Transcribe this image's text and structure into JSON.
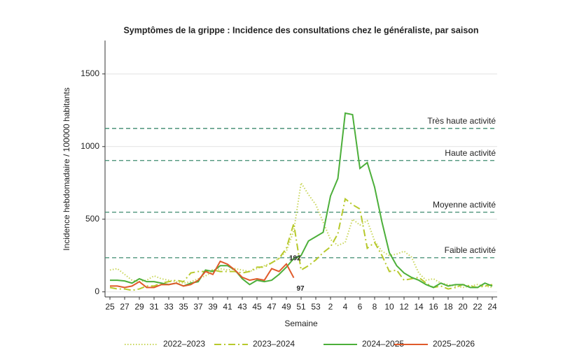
{
  "chart_data": {
    "type": "line",
    "title": "Symptômes de la grippe : Incidence des consultations chez le généraliste, par saison",
    "x_label": "Semaine",
    "y_label": "Incidence hebdomadaire / 100000 habitants",
    "categories": [
      "25",
      null,
      "27",
      null,
      "29",
      null,
      "31",
      null,
      "33",
      null,
      "35",
      null,
      "37",
      null,
      "39",
      null,
      "41",
      null,
      "43",
      null,
      "45",
      null,
      "47",
      null,
      "49",
      null,
      "51",
      null,
      "53",
      null,
      "2",
      null,
      "4",
      null,
      "6",
      null,
      "8",
      null,
      "10",
      null,
      "12",
      null,
      "14",
      null,
      "16",
      null,
      "18",
      null,
      "20",
      null,
      "22",
      null,
      "24"
    ],
    "ylim": [
      -35,
      1730
    ],
    "yticks": [
      0,
      500,
      1000,
      1500
    ],
    "grid": true,
    "reference_lines": [
      {
        "label": "Faible activité",
        "value": 235
      },
      {
        "label": "Moyenne activité",
        "value": 548
      },
      {
        "label": "Haute activité",
        "value": 904
      },
      {
        "label": "Très haute activité",
        "value": 1125
      }
    ],
    "reference_color": "#3d8a6e",
    "legend": "bottom",
    "series": [
      {
        "name": "2022–2023",
        "color": "#c9d65a",
        "dash": "dotted",
        "values": [
          150,
          160,
          120,
          80,
          70,
          80,
          110,
          90,
          80,
          70,
          60,
          70,
          90,
          110,
          140,
          160,
          150,
          160,
          150,
          140,
          160,
          180,
          200,
          230,
          280,
          420,
          750,
          670,
          600,
          480,
          360,
          320,
          340,
          500,
          460,
          490,
          350,
          280,
          250,
          260,
          280,
          240,
          130,
          80,
          90,
          60,
          50,
          40,
          30,
          40,
          50,
          40,
          30
        ]
      },
      {
        "name": "2023–2024",
        "color": "#b7c92c",
        "dash": "dashdot",
        "values": [
          30,
          20,
          20,
          10,
          20,
          40,
          40,
          60,
          70,
          80,
          70,
          130,
          140,
          140,
          150,
          140,
          140,
          140,
          130,
          140,
          170,
          170,
          200,
          230,
          300,
          470,
          150,
          180,
          220,
          270,
          310,
          400,
          640,
          600,
          570,
          300,
          340,
          250,
          140,
          150,
          80,
          90,
          100,
          60,
          30,
          40,
          20,
          30,
          50,
          40,
          30,
          40,
          50
        ]
      },
      {
        "name": "2024–2025",
        "color": "#4caf3a",
        "dash": "solid",
        "values": [
          80,
          80,
          75,
          60,
          90,
          70,
          70,
          60,
          50,
          60,
          40,
          60,
          70,
          150,
          140,
          180,
          180,
          150,
          90,
          50,
          80,
          70,
          80,
          120,
          170,
          230,
          250,
          350,
          380,
          410,
          660,
          780,
          1230,
          1220,
          850,
          890,
          720,
          480,
          270,
          180,
          130,
          100,
          80,
          50,
          30,
          60,
          40,
          50,
          50,
          30,
          30,
          60,
          40
        ]
      },
      {
        "name": "2025–2026",
        "color": "#e05a2b",
        "dash": "solid",
        "values": [
          40,
          40,
          30,
          40,
          70,
          30,
          30,
          50,
          50,
          60,
          40,
          50,
          80,
          140,
          120,
          210,
          190,
          150,
          100,
          80,
          90,
          80,
          160,
          140,
          192,
          97,
          null,
          null,
          null,
          null,
          null,
          null,
          null,
          null,
          null,
          null,
          null,
          null,
          null,
          null,
          null,
          null,
          null,
          null,
          null,
          null,
          null,
          null,
          null,
          null,
          null,
          null,
          null
        ],
        "value_labels": [
          null,
          null,
          null,
          null,
          null,
          null,
          null,
          null,
          null,
          null,
          null,
          null,
          null,
          null,
          null,
          null,
          null,
          null,
          null,
          null,
          null,
          null,
          null,
          null,
          "192",
          "97",
          null,
          null,
          null,
          null,
          null,
          null,
          null,
          null,
          null,
          null,
          null,
          null,
          null,
          null,
          null,
          null,
          null,
          null,
          null,
          null,
          null,
          null,
          null,
          null,
          null,
          null,
          null
        ]
      }
    ]
  }
}
